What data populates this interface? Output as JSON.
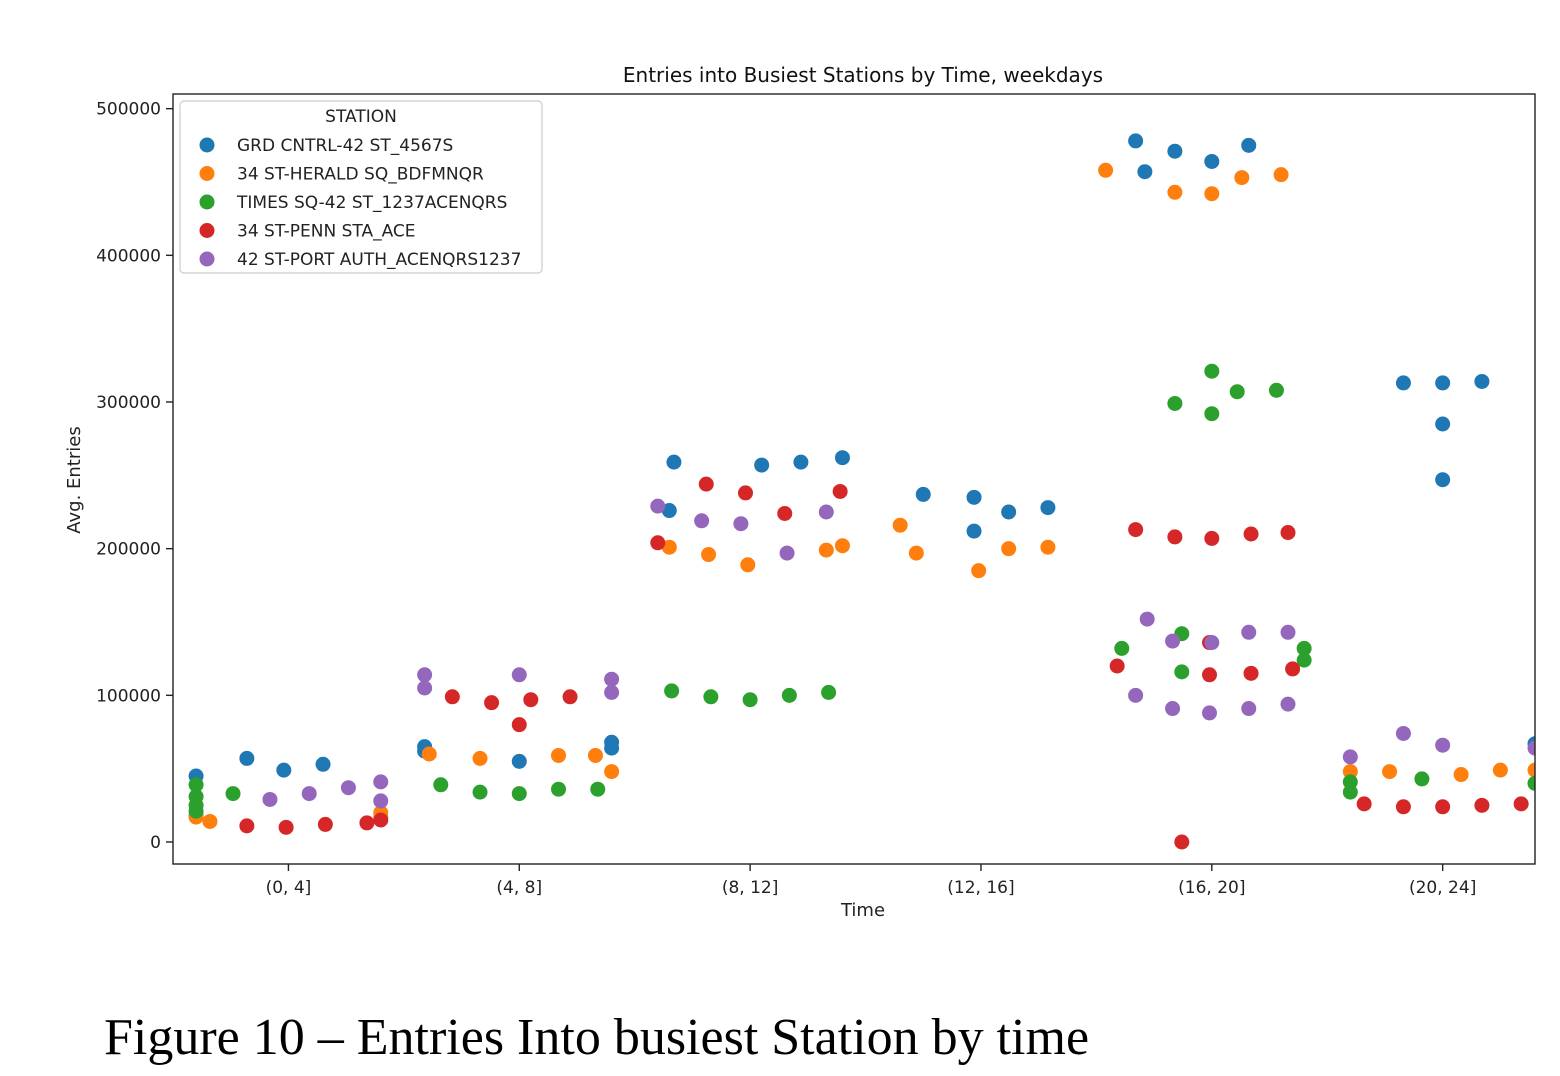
{
  "caption": "Figure 10 – Entries Into busiest Station by time",
  "chart_data": {
    "type": "scatter",
    "title": "Entries into Busiest Stations by Time, weekdays",
    "xlabel": "Time",
    "ylabel": "Avg. Entries",
    "categories": [
      "(0, 4]",
      "(4, 8]",
      "(8, 12]",
      "(12, 16]",
      "(16, 20]",
      "(20, 24]"
    ],
    "xlim": [
      -0.5,
      5.4
    ],
    "ylim": [
      -15000,
      510000
    ],
    "yticks": [
      0,
      100000,
      200000,
      300000,
      400000,
      500000
    ],
    "ytick_labels": [
      "0",
      "100000",
      "200000",
      "300000",
      "400000",
      "500000"
    ],
    "grid": false,
    "legend": {
      "title": "STATION",
      "placement": "top-left"
    },
    "series": [
      {
        "name": "GRD CNTRL-42 ST_4567S",
        "color": "#1f77b4",
        "points": [
          [
            -0.4,
            45000
          ],
          [
            -0.4,
            18000
          ],
          [
            -0.18,
            57000
          ],
          [
            -0.02,
            49000
          ],
          [
            0.15,
            53000
          ],
          [
            0.59,
            65000
          ],
          [
            0.59,
            62000
          ],
          [
            1.0,
            55000
          ],
          [
            1.4,
            68000
          ],
          [
            1.4,
            64000
          ],
          [
            1.67,
            259000
          ],
          [
            1.65,
            226000
          ],
          [
            2.05,
            257000
          ],
          [
            2.22,
            259000
          ],
          [
            2.4,
            262000
          ],
          [
            2.75,
            237000
          ],
          [
            2.97,
            235000
          ],
          [
            2.97,
            212000
          ],
          [
            3.12,
            225000
          ],
          [
            3.29,
            228000
          ],
          [
            3.67,
            478000
          ],
          [
            3.71,
            457000
          ],
          [
            3.84,
            471000
          ],
          [
            4.0,
            464000
          ],
          [
            4.16,
            475000
          ],
          [
            4.83,
            313000
          ],
          [
            5.0,
            313000
          ],
          [
            5.0,
            285000
          ],
          [
            5.0,
            247000
          ],
          [
            5.17,
            314000
          ],
          [
            5.4,
            67000
          ]
        ]
      },
      {
        "name": "34 ST-HERALD SQ_BDFMNQR",
        "color": "#ff7f0e",
        "points": [
          [
            -0.4,
            17000
          ],
          [
            -0.34,
            14000
          ],
          [
            0.4,
            20000
          ],
          [
            0.4,
            17000
          ],
          [
            0.61,
            60000
          ],
          [
            0.83,
            57000
          ],
          [
            1.17,
            59000
          ],
          [
            1.33,
            59000
          ],
          [
            1.4,
            48000
          ],
          [
            1.65,
            201000
          ],
          [
            1.82,
            196000
          ],
          [
            1.99,
            189000
          ],
          [
            2.33,
            199000
          ],
          [
            2.4,
            202000
          ],
          [
            2.65,
            216000
          ],
          [
            2.72,
            197000
          ],
          [
            2.99,
            185000
          ],
          [
            3.12,
            200000
          ],
          [
            3.29,
            201000
          ],
          [
            3.54,
            458000
          ],
          [
            3.84,
            443000
          ],
          [
            4.0,
            442000
          ],
          [
            4.13,
            453000
          ],
          [
            4.3,
            455000
          ],
          [
            4.6,
            48000
          ],
          [
            4.77,
            48000
          ],
          [
            5.08,
            46000
          ],
          [
            5.25,
            49000
          ],
          [
            5.4,
            49000
          ]
        ]
      },
      {
        "name": "TIMES SQ-42 ST_1237ACENQRS",
        "color": "#2ca02c",
        "points": [
          [
            -0.4,
            39000
          ],
          [
            -0.4,
            31000
          ],
          [
            -0.4,
            25000
          ],
          [
            -0.4,
            21000
          ],
          [
            -0.24,
            33000
          ],
          [
            0.66,
            39000
          ],
          [
            0.83,
            34000
          ],
          [
            1.0,
            33000
          ],
          [
            1.17,
            36000
          ],
          [
            1.34,
            36000
          ],
          [
            1.66,
            103000
          ],
          [
            1.83,
            99000
          ],
          [
            2.0,
            97000
          ],
          [
            2.17,
            100000
          ],
          [
            2.34,
            102000
          ],
          [
            3.61,
            132000
          ],
          [
            3.87,
            142000
          ],
          [
            3.87,
            116000
          ],
          [
            4.4,
            132000
          ],
          [
            4.4,
            124000
          ],
          [
            3.84,
            299000
          ],
          [
            4.0,
            321000
          ],
          [
            4.0,
            292000
          ],
          [
            4.11,
            307000
          ],
          [
            4.28,
            308000
          ],
          [
            4.6,
            41000
          ],
          [
            4.6,
            34000
          ],
          [
            4.91,
            43000
          ],
          [
            5.4,
            40000
          ]
        ]
      },
      {
        "name": "34 ST-PENN STA_ACE",
        "color": "#d62728",
        "points": [
          [
            -0.18,
            11000
          ],
          [
            -0.01,
            10000
          ],
          [
            0.16,
            12000
          ],
          [
            0.34,
            13000
          ],
          [
            0.4,
            15000
          ],
          [
            0.71,
            99000
          ],
          [
            0.88,
            95000
          ],
          [
            1.0,
            80000
          ],
          [
            1.05,
            97000
          ],
          [
            1.22,
            99000
          ],
          [
            1.6,
            204000
          ],
          [
            1.81,
            244000
          ],
          [
            1.98,
            238000
          ],
          [
            2.15,
            224000
          ],
          [
            2.39,
            239000
          ],
          [
            3.59,
            120000
          ],
          [
            3.87,
            0
          ],
          [
            3.99,
            136000
          ],
          [
            3.99,
            114000
          ],
          [
            4.17,
            115000
          ],
          [
            4.35,
            118000
          ],
          [
            3.67,
            213000
          ],
          [
            3.84,
            208000
          ],
          [
            4.0,
            207000
          ],
          [
            4.17,
            210000
          ],
          [
            4.33,
            211000
          ],
          [
            4.66,
            26000
          ],
          [
            4.83,
            24000
          ],
          [
            5.0,
            24000
          ],
          [
            5.17,
            25000
          ],
          [
            5.34,
            26000
          ]
        ]
      },
      {
        "name": "42 ST-PORT AUTH_ACENQRS1237",
        "color": "#9467bd",
        "points": [
          [
            -0.08,
            29000
          ],
          [
            0.09,
            33000
          ],
          [
            0.26,
            37000
          ],
          [
            0.4,
            41000
          ],
          [
            0.4,
            28000
          ],
          [
            0.59,
            114000
          ],
          [
            0.59,
            105000
          ],
          [
            1.0,
            114000
          ],
          [
            1.4,
            111000
          ],
          [
            1.4,
            102000
          ],
          [
            1.6,
            229000
          ],
          [
            1.79,
            219000
          ],
          [
            1.96,
            217000
          ],
          [
            2.16,
            197000
          ],
          [
            2.33,
            225000
          ],
          [
            3.67,
            100000
          ],
          [
            3.83,
            91000
          ],
          [
            3.99,
            88000
          ],
          [
            4.16,
            91000
          ],
          [
            4.33,
            94000
          ],
          [
            3.72,
            152000
          ],
          [
            3.83,
            137000
          ],
          [
            4.0,
            136000
          ],
          [
            4.16,
            143000
          ],
          [
            4.33,
            143000
          ],
          [
            4.6,
            58000
          ],
          [
            4.83,
            74000
          ],
          [
            5.0,
            66000
          ],
          [
            5.4,
            64000
          ]
        ]
      }
    ]
  }
}
